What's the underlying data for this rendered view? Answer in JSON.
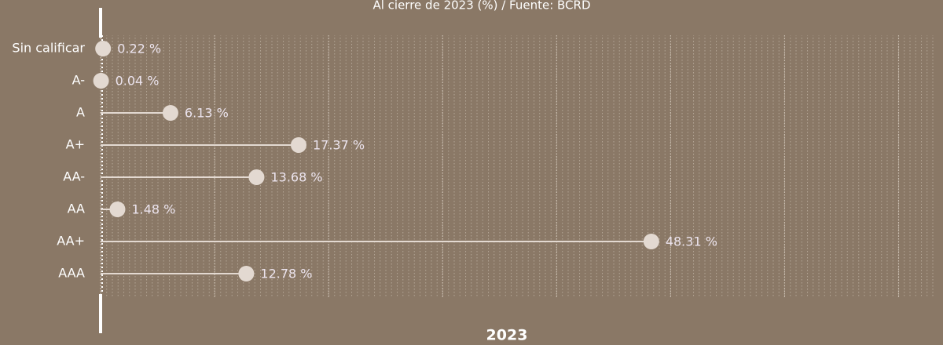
{
  "chart_data": {
    "type": "lollipop",
    "subtitle": "Al cierre de 2023 (%) / Fuente: BCRD",
    "x_label": "2023",
    "categories": [
      "Sin calificar",
      "A-",
      "A",
      "A+",
      "AA-",
      "AA",
      "AA+",
      "AAA"
    ],
    "values": [
      0.22,
      0.04,
      6.13,
      17.37,
      13.68,
      1.48,
      48.31,
      12.78
    ],
    "value_labels": [
      "0.22 %",
      "0.04 %",
      "6.13 %",
      "17.37 %",
      "13.68 %",
      "1.48 %",
      "48.31 %",
      "12.78 %"
    ],
    "color": "#e3d9d1",
    "xlim": [
      0,
      73
    ],
    "xticks": [
      0,
      10,
      20,
      30,
      40,
      50,
      60,
      70
    ],
    "grid": true
  }
}
